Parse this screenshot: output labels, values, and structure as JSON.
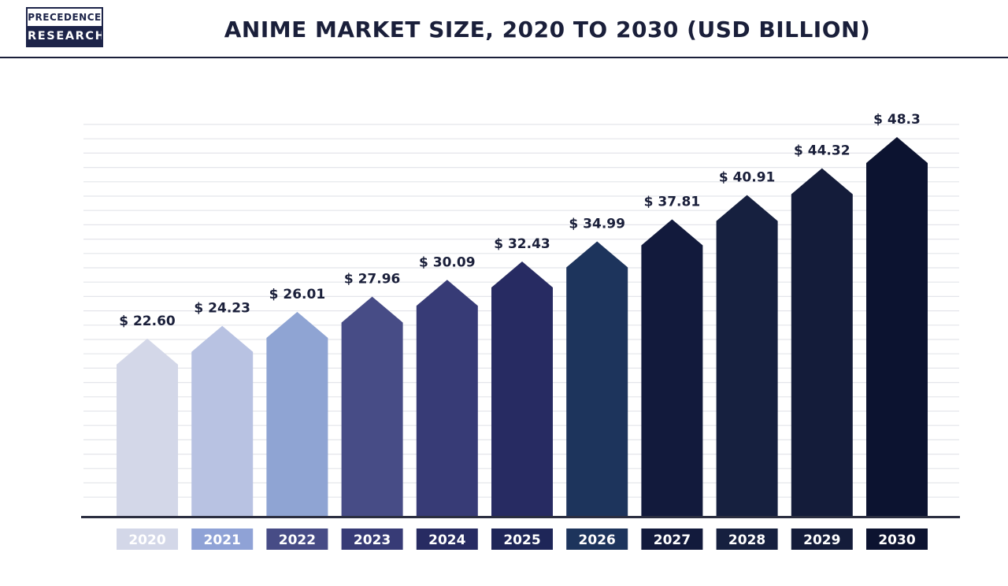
{
  "brand": {
    "line1": "PRECEDENCE",
    "line2": "RESEARCH",
    "color": "#1d2449"
  },
  "chart_data": {
    "type": "bar",
    "title": "ANIME MARKET SIZE, 2020 TO 2030 (USD BILLION)",
    "xlabel": "",
    "ylabel": "",
    "ylim": [
      0,
      48.3
    ],
    "grid": true,
    "categories": [
      "2020",
      "2021",
      "2022",
      "2023",
      "2024",
      "2025",
      "2026",
      "2027",
      "2028",
      "2029",
      "2030"
    ],
    "values": [
      22.6,
      24.23,
      26.01,
      27.96,
      30.09,
      32.43,
      34.99,
      37.81,
      40.91,
      44.32,
      48.3
    ],
    "value_labels": [
      "$ 22.60",
      "$ 24.23",
      "$ 26.01",
      "$ 27.96",
      "$ 30.09",
      "$ 32.43",
      "$ 34.99",
      "$ 37.81",
      "$ 40.91",
      "$ 44.32",
      "$ 48.3"
    ],
    "bar_colors": [
      "#d3d7e8",
      "#b8c2e2",
      "#8fa4d3",
      "#474c86",
      "#373b76",
      "#272b62",
      "#1d345c",
      "#121a3c",
      "#16203f",
      "#141c3a",
      "#0c1330"
    ],
    "year_label_colors": [
      "#d3d7e8",
      "#8fa2d6",
      "#474c86",
      "#373b76",
      "#272b62",
      "#1e2658",
      "#1d345c",
      "#121a3c",
      "#16203f",
      "#141c3a",
      "#0c1330"
    ]
  }
}
